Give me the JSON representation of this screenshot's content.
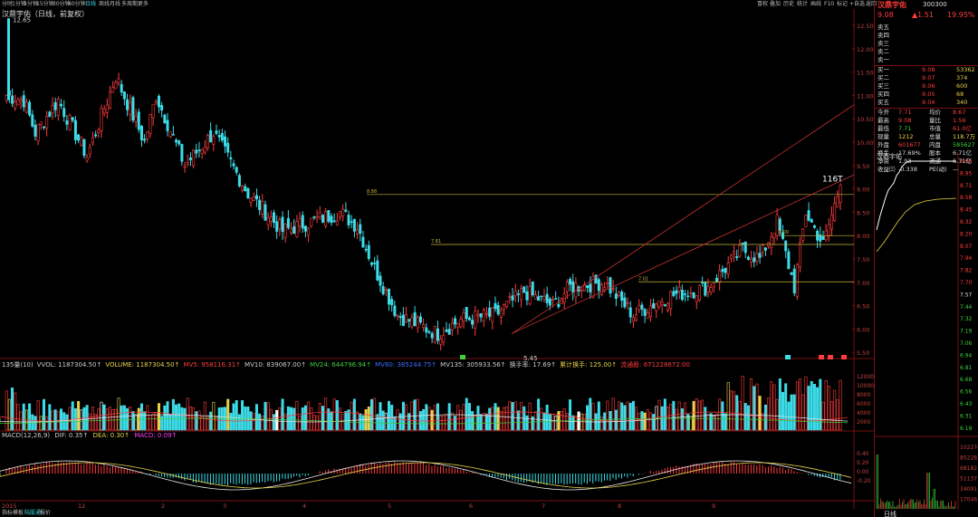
{
  "toolbar": {
    "left": [
      "分时",
      "1分钟",
      "5分钟",
      "15分钟",
      "30分钟",
      "60分钟",
      "日线",
      "周线",
      "月线",
      "多周期",
      "更多"
    ],
    "right": [
      "冒权",
      "叠加",
      "历史",
      "统计",
      "画线",
      "F10",
      "标记",
      "+自选",
      "返回"
    ]
  },
  "stock_title": "汉鼎宇佑（日线，前复权）",
  "price_labels": {
    "high_mark": "12.65",
    "low_mark": "5.45",
    "right_callout": "116T",
    "line_a": "8.88",
    "line_b": "7.81",
    "line_c": "7.01",
    "line_d": "8.00"
  },
  "price_axis": [
    "12.50",
    "12.00",
    "11.50",
    "11.00",
    "10.50",
    "10.00",
    "9.50",
    "9.00",
    "8.50",
    "8.00",
    "7.50",
    "7.00",
    "6.50",
    "6.00",
    "5.50"
  ],
  "volume_legend": [
    {
      "text": "135量(10)",
      "color": "#cccccc"
    },
    {
      "text": "VVOL: 1187304.50↑",
      "color": "#cccccc"
    },
    {
      "text": "VOLUME: 1187304.50↑",
      "color": "#e8d24a"
    },
    {
      "text": "MV5: 958116.31↑",
      "color": "#ff3c3c"
    },
    {
      "text": "MV10: 839067.00↑",
      "color": "#cccccc"
    },
    {
      "text": "MV24: 644796.94↑",
      "color": "#3cd23c"
    },
    {
      "text": "MV60: 385244.75↑",
      "color": "#3c6cff"
    },
    {
      "text": "MV135: 305933.56↑",
      "color": "#cccccc"
    },
    {
      "text": "换手率: 17.69↑",
      "color": "#cccccc"
    },
    {
      "text": "累计换手: 125.00↑",
      "color": "#e8d24a"
    },
    {
      "text": "流通股: 671228672.00",
      "color": "#ff3c3c"
    }
  ],
  "volume_axis": [
    "12000",
    "10000",
    "8000",
    "6000",
    "4000",
    "2000"
  ],
  "macd_legend": [
    {
      "text": "MACD(12,26,9)",
      "color": "#cccccc"
    },
    {
      "text": "DIF: 0.35↑",
      "color": "#cccccc"
    },
    {
      "text": "DEA: 0.30↑",
      "color": "#e8d24a"
    },
    {
      "text": "MACD: 0.09↑",
      "color": "#ff3cff"
    }
  ],
  "macd_axis": [
    "0.40",
    "0.20",
    "0.00",
    "-0.20"
  ],
  "date_axis": [
    "2015",
    "12",
    "2",
    "3",
    "4",
    "5",
    "6",
    "7",
    "8",
    "9"
  ],
  "event_markers": [
    "权",
    "增",
    "增",
    "除"
  ],
  "panel": {
    "name": "汉鼎宇佑",
    "code": "300300",
    "price": "9.08",
    "change": "▲1.51",
    "pct": "19.95%",
    "sells": [
      {
        "label": "卖五",
        "price": "",
        "vol": ""
      },
      {
        "label": "卖四",
        "price": "",
        "vol": ""
      },
      {
        "label": "卖三",
        "price": "",
        "vol": ""
      },
      {
        "label": "卖二",
        "price": "",
        "vol": ""
      },
      {
        "label": "卖一",
        "price": "",
        "vol": ""
      }
    ],
    "buys": [
      {
        "label": "买一",
        "price": "9.08",
        "vol": "53362"
      },
      {
        "label": "买二",
        "price": "9.07",
        "vol": "374"
      },
      {
        "label": "买三",
        "price": "9.06",
        "vol": "600"
      },
      {
        "label": "买四",
        "price": "9.05",
        "vol": "68"
      },
      {
        "label": "买五",
        "price": "9.04",
        "vol": "340"
      }
    ],
    "stats": [
      {
        "l1": "今开",
        "v1": "7.71",
        "l2": "均价",
        "v2": "8.67"
      },
      {
        "l1": "最高",
        "v1": "9.08",
        "l2": "量比",
        "v2": "1.56"
      },
      {
        "l1": "最低",
        "v1": "7.71",
        "l2": "市值",
        "v2": "61.0亿"
      },
      {
        "l1": "现量",
        "v1": "1212",
        "l2": "总量",
        "v2": "118.7万"
      },
      {
        "l1": "外盘",
        "v1": "601677",
        "l2": "内盘",
        "v2": "585627"
      },
      {
        "l1": "换手",
        "v1": "17.69%",
        "l2": "股本",
        "v2": "6.71亿"
      },
      {
        "l1": "净资",
        "v1": "1.93",
        "l2": "流通",
        "v2": "6.71亿"
      },
      {
        "l1": "收益㈢",
        "v1": "-0.338",
        "l2": "PE(动)",
        "v2": "—"
      }
    ],
    "mini_title": "汉鼎宇佑",
    "mini_price_axis": [
      "9.08",
      "8.95",
      "8.71",
      "8.58",
      "8.45",
      "8.32",
      "8.20",
      "8.07",
      "7.94",
      "7.82",
      "7.70",
      "7.57",
      "7.44",
      "7.32",
      "7.19",
      "7.06",
      "6.94",
      "6.81",
      "6.68",
      "6.56",
      "6.43",
      "6.31",
      "6.19"
    ],
    "mini_vol_axis": [
      "102276",
      "85228",
      "68182",
      "51137",
      "34091",
      "17046"
    ],
    "bottom_tab": "日线"
  },
  "bottom_tabs": [
    "指标",
    "模板",
    "陆股通",
    "报价"
  ]
}
